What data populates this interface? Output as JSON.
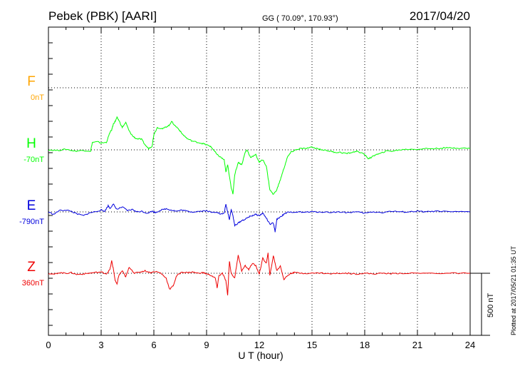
{
  "header": {
    "station": "Pebek (PBK)  [AARI]",
    "coords": "GG ( 70.09°, 170.93°)",
    "date": "2017/04/20"
  },
  "footer_note": "Plotted at 2017/05/21 01:35 UT",
  "scale_bar_label": "500 nT",
  "chart_data": {
    "type": "line",
    "xlabel": "U T (hour)",
    "xlim": [
      0,
      24
    ],
    "xticks": [
      0,
      3,
      6,
      9,
      12,
      15,
      18,
      21,
      24
    ],
    "grid": true,
    "scale_bar_nT": 500,
    "components": [
      {
        "name": "F",
        "offset_label": "0nT",
        "color": "#ffa500",
        "baseline_nT": 0,
        "points": []
      },
      {
        "name": "H",
        "offset_label": "-70nT",
        "color": "#00ff00",
        "baseline_nT": -70,
        "points": [
          [
            0,
            0
          ],
          [
            0.5,
            -5
          ],
          [
            1,
            5
          ],
          [
            1.5,
            -10
          ],
          [
            2,
            -5
          ],
          [
            2.4,
            -10
          ],
          [
            2.5,
            60
          ],
          [
            2.8,
            65
          ],
          [
            3,
            55
          ],
          [
            3.3,
            60
          ],
          [
            3.5,
            140
          ],
          [
            3.6,
            160
          ],
          [
            3.7,
            210
          ],
          [
            3.8,
            230
          ],
          [
            3.9,
            260
          ],
          [
            4,
            240
          ],
          [
            4.2,
            180
          ],
          [
            4.4,
            220
          ],
          [
            4.6,
            150
          ],
          [
            4.8,
            110
          ],
          [
            5,
            90
          ],
          [
            5.3,
            85
          ],
          [
            5.5,
            40
          ],
          [
            5.7,
            10
          ],
          [
            5.9,
            30
          ],
          [
            6,
            125
          ],
          [
            6.2,
            180
          ],
          [
            6.5,
            170
          ],
          [
            6.7,
            185
          ],
          [
            6.9,
            200
          ],
          [
            7,
            230
          ],
          [
            7.2,
            195
          ],
          [
            7.4,
            170
          ],
          [
            7.6,
            130
          ],
          [
            7.9,
            90
          ],
          [
            8.2,
            70
          ],
          [
            8.5,
            60
          ],
          [
            8.8,
            50
          ],
          [
            9,
            40
          ],
          [
            9.2,
            30
          ],
          [
            9.4,
            0
          ],
          [
            9.6,
            -40
          ],
          [
            9.8,
            -60
          ],
          [
            10,
            -80
          ],
          [
            10.1,
            -180
          ],
          [
            10.2,
            -120
          ],
          [
            10.4,
            -300
          ],
          [
            10.5,
            -360
          ],
          [
            10.6,
            -200
          ],
          [
            10.8,
            -100
          ],
          [
            11,
            -120
          ],
          [
            11.2,
            -20
          ],
          [
            11.3,
            0
          ],
          [
            11.5,
            -60
          ],
          [
            11.8,
            -40
          ],
          [
            12,
            -100
          ],
          [
            12.2,
            -80
          ],
          [
            12.4,
            -130
          ],
          [
            12.6,
            -320
          ],
          [
            12.8,
            -360
          ],
          [
            13,
            -320
          ],
          [
            13.2,
            -240
          ],
          [
            13.4,
            -150
          ],
          [
            13.6,
            -60
          ],
          [
            13.8,
            -20
          ],
          [
            14,
            -5
          ],
          [
            14.3,
            10
          ],
          [
            14.6,
            10
          ],
          [
            15,
            20
          ],
          [
            15.3,
            10
          ],
          [
            15.6,
            0
          ],
          [
            16,
            -10
          ],
          [
            16.3,
            -20
          ],
          [
            16.6,
            -20
          ],
          [
            17,
            -30
          ],
          [
            17.3,
            -20
          ],
          [
            17.6,
            -10
          ],
          [
            18,
            -40
          ],
          [
            18.2,
            -70
          ],
          [
            18.4,
            -60
          ],
          [
            18.6,
            -40
          ],
          [
            18.9,
            -30
          ],
          [
            19.2,
            -10
          ],
          [
            19.6,
            -10
          ],
          [
            20,
            0
          ],
          [
            20.5,
            5
          ],
          [
            21,
            5
          ],
          [
            21.5,
            10
          ],
          [
            22,
            10
          ],
          [
            22.5,
            15
          ],
          [
            23,
            15
          ],
          [
            23.5,
            15
          ],
          [
            24,
            10
          ]
        ]
      },
      {
        "name": "E",
        "offset_label": "-790nT",
        "color": "#0000dd",
        "baseline_nT": -790,
        "points": [
          [
            0,
            0
          ],
          [
            0.3,
            -20
          ],
          [
            0.6,
            10
          ],
          [
            1,
            15
          ],
          [
            1.3,
            5
          ],
          [
            1.6,
            -15
          ],
          [
            2,
            -30
          ],
          [
            2.3,
            -10
          ],
          [
            2.6,
            0
          ],
          [
            3,
            15
          ],
          [
            3.2,
            5
          ],
          [
            3.4,
            50
          ],
          [
            3.5,
            30
          ],
          [
            3.7,
            60
          ],
          [
            3.9,
            20
          ],
          [
            4.2,
            40
          ],
          [
            4.5,
            10
          ],
          [
            4.8,
            20
          ],
          [
            5,
            0
          ],
          [
            5.3,
            5
          ],
          [
            5.6,
            -10
          ],
          [
            5.9,
            5
          ],
          [
            6.1,
            -5
          ],
          [
            6.4,
            15
          ],
          [
            6.7,
            25
          ],
          [
            7,
            15
          ],
          [
            7.3,
            5
          ],
          [
            7.6,
            15
          ],
          [
            7.9,
            5
          ],
          [
            8.2,
            0
          ],
          [
            8.6,
            5
          ],
          [
            9,
            10
          ],
          [
            9.3,
            -5
          ],
          [
            9.6,
            0
          ],
          [
            9.8,
            -20
          ],
          [
            10,
            -10
          ],
          [
            10.1,
            60
          ],
          [
            10.2,
            0
          ],
          [
            10.3,
            -60
          ],
          [
            10.4,
            20
          ],
          [
            10.5,
            -30
          ],
          [
            10.6,
            -110
          ],
          [
            10.8,
            -90
          ],
          [
            11,
            -70
          ],
          [
            11.2,
            -60
          ],
          [
            11.4,
            -40
          ],
          [
            11.6,
            -30
          ],
          [
            11.8,
            -20
          ],
          [
            12,
            -30
          ],
          [
            12.2,
            -10
          ],
          [
            12.4,
            -50
          ],
          [
            12.6,
            -100
          ],
          [
            12.8,
            -90
          ],
          [
            12.9,
            -160
          ],
          [
            13,
            -60
          ],
          [
            13.2,
            -40
          ],
          [
            13.4,
            -20
          ],
          [
            13.6,
            -5
          ],
          [
            14,
            0
          ],
          [
            14.5,
            -3
          ],
          [
            15,
            0
          ],
          [
            15.5,
            0
          ],
          [
            16,
            -3
          ],
          [
            16.5,
            0
          ],
          [
            17,
            -5
          ],
          [
            17.5,
            0
          ],
          [
            18,
            -10
          ],
          [
            18.5,
            0
          ],
          [
            19,
            -5
          ],
          [
            19.5,
            5
          ],
          [
            20,
            0
          ],
          [
            20.5,
            0
          ],
          [
            21,
            5
          ],
          [
            21.5,
            0
          ],
          [
            22,
            5
          ],
          [
            23,
            0
          ],
          [
            24,
            0
          ]
        ]
      },
      {
        "name": "Z",
        "offset_label": "360nT",
        "color": "#ee0000",
        "baseline_nT": 360,
        "points": [
          [
            0,
            0
          ],
          [
            0.3,
            -10
          ],
          [
            0.6,
            5
          ],
          [
            1,
            0
          ],
          [
            1.3,
            5
          ],
          [
            1.6,
            -10
          ],
          [
            2,
            -5
          ],
          [
            2.3,
            0
          ],
          [
            2.6,
            5
          ],
          [
            3,
            10
          ],
          [
            3.3,
            -5
          ],
          [
            3.5,
            30
          ],
          [
            3.6,
            100
          ],
          [
            3.7,
            30
          ],
          [
            3.8,
            -60
          ],
          [
            3.9,
            -90
          ],
          [
            4,
            -20
          ],
          [
            4.2,
            20
          ],
          [
            4.4,
            -30
          ],
          [
            4.6,
            50
          ],
          [
            4.9,
            0
          ],
          [
            5.2,
            10
          ],
          [
            5.5,
            20
          ],
          [
            5.8,
            5
          ],
          [
            6.1,
            15
          ],
          [
            6.4,
            0
          ],
          [
            6.7,
            -40
          ],
          [
            6.9,
            -130
          ],
          [
            7.1,
            -100
          ],
          [
            7.3,
            -20
          ],
          [
            7.6,
            10
          ],
          [
            7.9,
            5
          ],
          [
            8.2,
            10
          ],
          [
            8.5,
            0
          ],
          [
            8.8,
            5
          ],
          [
            9,
            -5
          ],
          [
            9.3,
            -20
          ],
          [
            9.5,
            -40
          ],
          [
            9.6,
            -120
          ],
          [
            9.7,
            -20
          ],
          [
            9.9,
            0
          ],
          [
            10.1,
            -60
          ],
          [
            10.2,
            -180
          ],
          [
            10.3,
            100
          ],
          [
            10.4,
            0
          ],
          [
            10.6,
            -40
          ],
          [
            10.8,
            150
          ],
          [
            11,
            20
          ],
          [
            11.2,
            60
          ],
          [
            11.4,
            30
          ],
          [
            11.6,
            80
          ],
          [
            11.8,
            60
          ],
          [
            12,
            -5
          ],
          [
            12.2,
            120
          ],
          [
            12.4,
            80
          ],
          [
            12.5,
            160
          ],
          [
            12.6,
            -20
          ],
          [
            12.8,
            140
          ],
          [
            13,
            20
          ],
          [
            13.2,
            60
          ],
          [
            13.4,
            -50
          ],
          [
            13.6,
            -20
          ],
          [
            13.8,
            0
          ],
          [
            14,
            5
          ],
          [
            14.5,
            0
          ],
          [
            15,
            0
          ],
          [
            15.5,
            3
          ],
          [
            16,
            -5
          ],
          [
            16.5,
            0
          ],
          [
            17,
            0
          ],
          [
            17.5,
            -5
          ],
          [
            18,
            0
          ],
          [
            18.5,
            -5
          ],
          [
            19,
            0
          ],
          [
            19.5,
            -3
          ],
          [
            20,
            0
          ],
          [
            21,
            0
          ],
          [
            22,
            0
          ],
          [
            23,
            0
          ],
          [
            24,
            0
          ]
        ]
      }
    ]
  }
}
